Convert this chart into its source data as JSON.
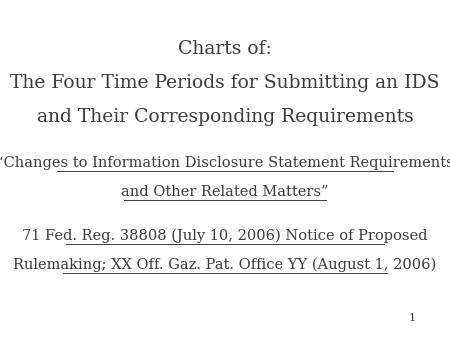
{
  "background_color": "#ffffff",
  "title_line1": "Charts of:",
  "title_line2": "The Four Time Periods for Submitting an IDS",
  "title_line3": "and Their Corresponding Requirements",
  "subtitle_line1": "“Changes to Information Disclosure Statement Requirements",
  "subtitle_line2": "and Other Related Matters”",
  "ref_line1": "71 Fed. Reg. 38808 (July 10, 2006) Notice of Proposed",
  "ref_line2_normal1": "Rulemaking; XX ",
  "ref_line2_italic": "Off. Gaz. Pat. Office",
  "ref_line2_normal2": " YY (August 1, 2006)",
  "page_number": "1",
  "text_color": "#3c3c3c",
  "title_fontsize": 13.5,
  "subtitle_fontsize": 10.5,
  "ref_fontsize": 10.5,
  "page_fontsize": 8
}
